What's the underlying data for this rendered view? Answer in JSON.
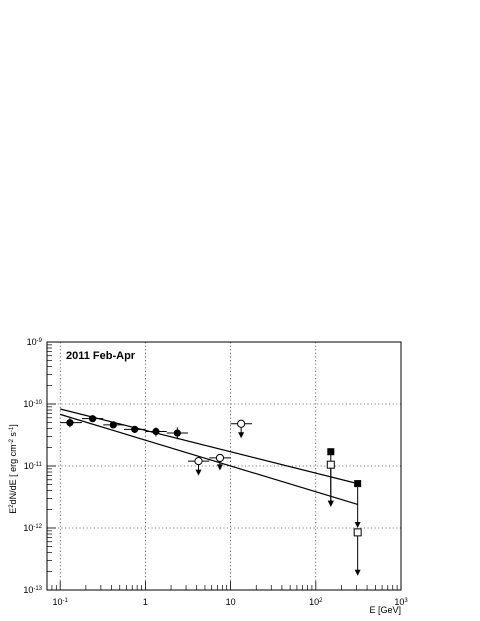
{
  "chart_data": {
    "type": "scatter",
    "annotation": "2011 Feb-Apr",
    "xlabel": "E [GeV]",
    "ylabel": {
      "pre": "E",
      "sup1": "2",
      "mid": "dN/dE [ erg cm",
      "sup2": "-2",
      "mid2": " s",
      "sup3": "-1",
      "post": "]"
    },
    "xscale": "log",
    "yscale": "log",
    "xlim": [
      0.07,
      1000
    ],
    "ylim": [
      1e-13,
      1e-09
    ],
    "grid": true,
    "x_ticks": [
      {
        "value": 0.1,
        "base": "10",
        "exp": "-1"
      },
      {
        "value": 1,
        "base": "1",
        "exp": ""
      },
      {
        "value": 10,
        "base": "10",
        "exp": ""
      },
      {
        "value": 100,
        "base": "10",
        "exp": "2"
      },
      {
        "value": 1000,
        "base": "10",
        "exp": "3"
      }
    ],
    "y_ticks": [
      {
        "value": 1e-13,
        "base": "10",
        "exp": "-13"
      },
      {
        "value": 1e-12,
        "base": "10",
        "exp": "-12"
      },
      {
        "value": 1e-11,
        "base": "10",
        "exp": "-11"
      },
      {
        "value": 1e-10,
        "base": "10",
        "exp": "-10"
      },
      {
        "value": 1e-09,
        "base": "10",
        "exp": "-9"
      }
    ],
    "series": [
      {
        "marker": "filled-circle",
        "points": [
          {
            "x": 0.13,
            "y": 5e-11,
            "xlo": 0.1,
            "xhi": 0.18,
            "ylo": 4.2e-11,
            "yhi": 5.9e-11
          },
          {
            "x": 0.24,
            "y": 5.8e-11,
            "xlo": 0.18,
            "xhi": 0.32,
            "ylo": 5.2e-11,
            "yhi": 6.4e-11
          },
          {
            "x": 0.42,
            "y": 4.6e-11,
            "xlo": 0.32,
            "xhi": 0.56,
            "ylo": 4.1e-11,
            "yhi": 5.1e-11
          },
          {
            "x": 0.75,
            "y": 3.9e-11,
            "xlo": 0.56,
            "xhi": 1.0,
            "ylo": 3.4e-11,
            "yhi": 4.4e-11
          },
          {
            "x": 1.33,
            "y": 3.6e-11,
            "xlo": 1.0,
            "xhi": 1.78,
            "ylo": 3e-11,
            "yhi": 4.2e-11
          },
          {
            "x": 2.37,
            "y": 3.4e-11,
            "xlo": 1.78,
            "xhi": 3.16,
            "ylo": 2.7e-11,
            "yhi": 4.2e-11
          }
        ]
      },
      {
        "marker": "open-circle-upper-limit",
        "points": [
          {
            "x": 4.2,
            "y": 1.2e-11,
            "xlo": 3.16,
            "xhi": 5.62,
            "arrow_to": 7e-12
          },
          {
            "x": 7.5,
            "y": 1.35e-11,
            "xlo": 5.62,
            "xhi": 10.0,
            "arrow_to": 8.5e-12
          },
          {
            "x": 13.3,
            "y": 4.8e-11,
            "xlo": 10.0,
            "xhi": 17.8,
            "arrow_to": 2.8e-11
          }
        ]
      },
      {
        "marker": "filled-square-upper-limit",
        "points": [
          {
            "x": 150,
            "y": 1.7e-11,
            "arrow_to": 2.2e-12
          },
          {
            "x": 310,
            "y": 5.2e-12,
            "arrow_to": 1e-12
          }
        ]
      },
      {
        "marker": "open-square-upper-limit",
        "points": [
          {
            "x": 150,
            "y": 1.05e-11,
            "arrow_to": 2.2e-12
          },
          {
            "x": 310,
            "y": 8.5e-13,
            "arrow_to": 1.7e-13
          }
        ]
      }
    ],
    "fit_lines": [
      {
        "x": [
          0.1,
          310
        ],
        "y": [
          8.3e-11,
          5.2e-12
        ]
      },
      {
        "x": [
          0.1,
          310
        ],
        "y": [
          6.8e-11,
          2.4e-12
        ]
      }
    ]
  }
}
